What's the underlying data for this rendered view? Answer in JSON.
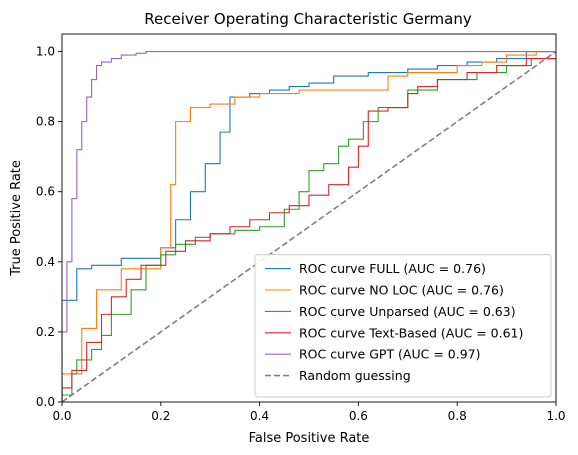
{
  "chart_data": {
    "type": "line",
    "title": "Receiver Operating Characteristic Germany",
    "xlabel": "False Positive Rate",
    "ylabel": "True Positive Rate",
    "xlim": [
      0.0,
      1.0
    ],
    "ylim": [
      0.0,
      1.05
    ],
    "xticks": [
      "0.0",
      "0.2",
      "0.4",
      "0.6",
      "0.8",
      "1.0"
    ],
    "yticks": [
      "0.0",
      "0.2",
      "0.4",
      "0.6",
      "0.8",
      "1.0"
    ],
    "grid": false,
    "legend_position": "lower-right",
    "series": [
      {
        "name": "ROC curve FULL (AUC = 0.76)",
        "color": "#1f77b4",
        "style": "solid",
        "x": [
          0.0,
          0.0,
          0.03,
          0.03,
          0.06,
          0.06,
          0.12,
          0.12,
          0.2,
          0.2,
          0.23,
          0.23,
          0.26,
          0.26,
          0.29,
          0.29,
          0.32,
          0.32,
          0.34,
          0.34,
          0.38,
          0.38,
          0.42,
          0.42,
          0.46,
          0.46,
          0.5,
          0.5,
          0.55,
          0.55,
          0.62,
          0.62,
          0.7,
          0.7,
          0.76,
          0.76,
          0.82,
          0.82,
          0.88,
          0.88,
          0.94,
          0.94,
          1.0
        ],
        "y": [
          0.0,
          0.29,
          0.29,
          0.38,
          0.38,
          0.39,
          0.39,
          0.41,
          0.41,
          0.44,
          0.44,
          0.52,
          0.52,
          0.6,
          0.6,
          0.68,
          0.68,
          0.77,
          0.77,
          0.87,
          0.87,
          0.88,
          0.88,
          0.89,
          0.89,
          0.9,
          0.9,
          0.91,
          0.91,
          0.93,
          0.93,
          0.94,
          0.94,
          0.95,
          0.95,
          0.96,
          0.96,
          0.97,
          0.97,
          0.98,
          0.98,
          1.0,
          1.0
        ]
      },
      {
        "name": "ROC curve NO LOC (AUC = 0.76)",
        "color": "#ff7f0e",
        "style": "solid",
        "x": [
          0.0,
          0.0,
          0.04,
          0.04,
          0.07,
          0.07,
          0.12,
          0.12,
          0.2,
          0.2,
          0.22,
          0.22,
          0.23,
          0.23,
          0.26,
          0.26,
          0.3,
          0.3,
          0.35,
          0.35,
          0.4,
          0.4,
          0.48,
          0.48,
          0.66,
          0.66,
          0.7,
          0.7,
          0.8,
          0.8,
          0.85,
          0.85,
          0.9,
          0.9,
          0.96,
          0.96,
          1.0
        ],
        "y": [
          0.0,
          0.08,
          0.08,
          0.21,
          0.21,
          0.32,
          0.32,
          0.38,
          0.38,
          0.44,
          0.44,
          0.62,
          0.62,
          0.8,
          0.8,
          0.84,
          0.84,
          0.85,
          0.85,
          0.87,
          0.87,
          0.88,
          0.88,
          0.89,
          0.89,
          0.93,
          0.93,
          0.94,
          0.94,
          0.96,
          0.96,
          0.97,
          0.97,
          0.99,
          0.99,
          1.0,
          1.0
        ]
      },
      {
        "name": "ROC curve Unparsed (AUC = 0.63)",
        "color": "#2ca02c",
        "style": "solid",
        "x": [
          0.0,
          0.0,
          0.02,
          0.02,
          0.03,
          0.03,
          0.06,
          0.06,
          0.08,
          0.08,
          0.1,
          0.1,
          0.14,
          0.14,
          0.17,
          0.17,
          0.2,
          0.2,
          0.23,
          0.23,
          0.27,
          0.27,
          0.3,
          0.3,
          0.35,
          0.35,
          0.4,
          0.4,
          0.45,
          0.45,
          0.48,
          0.48,
          0.5,
          0.5,
          0.53,
          0.53,
          0.56,
          0.56,
          0.58,
          0.58,
          0.61,
          0.61,
          0.64,
          0.64,
          0.7,
          0.7,
          0.76,
          0.76,
          0.84,
          0.84,
          0.9,
          0.9,
          0.95,
          0.95,
          1.0
        ],
        "y": [
          0.0,
          0.02,
          0.02,
          0.08,
          0.08,
          0.12,
          0.12,
          0.15,
          0.15,
          0.19,
          0.19,
          0.25,
          0.25,
          0.32,
          0.32,
          0.39,
          0.39,
          0.42,
          0.42,
          0.45,
          0.45,
          0.47,
          0.47,
          0.48,
          0.48,
          0.49,
          0.49,
          0.5,
          0.5,
          0.55,
          0.55,
          0.6,
          0.6,
          0.66,
          0.66,
          0.68,
          0.68,
          0.73,
          0.73,
          0.75,
          0.75,
          0.8,
          0.8,
          0.84,
          0.84,
          0.89,
          0.89,
          0.92,
          0.92,
          0.94,
          0.94,
          0.96,
          0.96,
          0.98,
          0.98
        ]
      },
      {
        "name": "ROC curve Text-Based (AUC = 0.61)",
        "color": "#d62728",
        "style": "solid",
        "x": [
          0.0,
          0.0,
          0.02,
          0.02,
          0.05,
          0.05,
          0.08,
          0.08,
          0.1,
          0.1,
          0.13,
          0.13,
          0.16,
          0.16,
          0.21,
          0.21,
          0.25,
          0.25,
          0.3,
          0.3,
          0.34,
          0.34,
          0.38,
          0.38,
          0.42,
          0.42,
          0.46,
          0.46,
          0.5,
          0.5,
          0.54,
          0.54,
          0.58,
          0.58,
          0.6,
          0.6,
          0.62,
          0.62,
          0.66,
          0.66,
          0.7,
          0.7,
          0.72,
          0.72,
          0.76,
          0.76,
          0.82,
          0.82,
          0.88,
          0.88,
          0.94,
          0.94,
          1.0
        ],
        "y": [
          0.0,
          0.04,
          0.04,
          0.09,
          0.09,
          0.17,
          0.17,
          0.25,
          0.25,
          0.3,
          0.3,
          0.35,
          0.35,
          0.39,
          0.39,
          0.43,
          0.43,
          0.46,
          0.46,
          0.48,
          0.48,
          0.5,
          0.5,
          0.52,
          0.52,
          0.54,
          0.54,
          0.56,
          0.56,
          0.59,
          0.59,
          0.62,
          0.62,
          0.67,
          0.67,
          0.73,
          0.73,
          0.83,
          0.83,
          0.84,
          0.84,
          0.88,
          0.88,
          0.9,
          0.9,
          0.92,
          0.92,
          0.94,
          0.94,
          0.96,
          0.96,
          0.98,
          0.98
        ]
      },
      {
        "name": "ROC curve GPT (AUC = 0.97)",
        "color": "#9467bd",
        "style": "solid",
        "x": [
          0.0,
          0.0,
          0.01,
          0.01,
          0.02,
          0.02,
          0.03,
          0.03,
          0.04,
          0.04,
          0.05,
          0.05,
          0.06,
          0.06,
          0.07,
          0.07,
          0.08,
          0.08,
          0.1,
          0.1,
          0.12,
          0.12,
          0.15,
          0.15,
          0.17,
          0.17,
          1.0
        ],
        "y": [
          0.0,
          0.2,
          0.2,
          0.4,
          0.4,
          0.58,
          0.58,
          0.72,
          0.72,
          0.8,
          0.8,
          0.87,
          0.87,
          0.92,
          0.92,
          0.96,
          0.96,
          0.97,
          0.97,
          0.98,
          0.98,
          0.99,
          0.99,
          0.995,
          0.995,
          1.0,
          1.0
        ]
      },
      {
        "name": "Random guessing",
        "color": "#808080",
        "style": "dashed",
        "x": [
          0.0,
          1.0
        ],
        "y": [
          0.0,
          1.0
        ]
      }
    ]
  }
}
